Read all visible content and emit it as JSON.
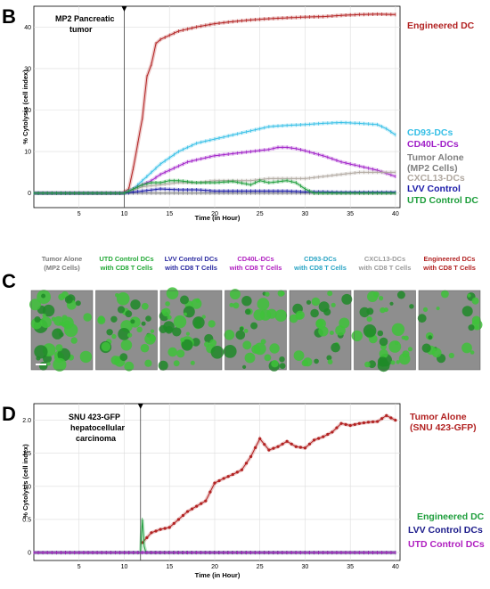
{
  "panels": {
    "B": "B",
    "C": "C",
    "D": "D"
  },
  "chart_data": [
    {
      "type": "line",
      "panel": "B",
      "annotation": "MP2 Pancreatic tumor",
      "xlabel": "Time (in Hour)",
      "ylabel": "% Cytolysis (cell index)",
      "xlim": [
        0,
        40.5
      ],
      "ylim": [
        -3.5,
        45
      ],
      "xticks": [
        5,
        10,
        15,
        20,
        25,
        30,
        35,
        40
      ],
      "yticks": [
        0,
        10,
        20,
        30,
        40
      ],
      "grid": true,
      "treatment_time": 10,
      "series": [
        {
          "name": "Engineered DC",
          "label": "Engineered DC",
          "color": "#b22222",
          "x": [
            0,
            9.8,
            10.5,
            11,
            11.5,
            12,
            12.5,
            13,
            13.5,
            14,
            15,
            16,
            17,
            18,
            20,
            22,
            24,
            26,
            28,
            30,
            32,
            34,
            36,
            38,
            40
          ],
          "y": [
            0,
            0,
            1,
            6,
            12,
            18,
            28,
            31,
            36,
            37,
            38,
            39,
            39.5,
            40,
            40.8,
            41.3,
            41.7,
            42,
            42.2,
            42.4,
            42.5,
            42.8,
            43,
            43.1,
            43
          ]
        },
        {
          "name": "CD93-DCs",
          "label": "CD93-DCs",
          "color": "#35bfe6",
          "x": [
            0,
            10,
            11,
            12,
            13,
            14,
            15,
            16,
            17,
            18,
            20,
            22,
            24,
            26,
            28,
            30,
            32,
            34,
            36,
            38,
            39,
            40
          ],
          "y": [
            0,
            0,
            1,
            3,
            5,
            7,
            8.5,
            10,
            11,
            12,
            13,
            14,
            15,
            16,
            16.3,
            16.5,
            16.8,
            17,
            16.8,
            16.5,
            15.5,
            14
          ]
        },
        {
          "name": "CD40L-DCs",
          "label": "CD40L-DCs",
          "color": "#a020c8",
          "x": [
            0,
            10,
            11,
            12,
            13,
            14,
            15,
            16,
            17,
            18,
            20,
            22,
            24,
            26,
            27,
            28,
            29,
            30,
            32,
            34,
            36,
            38,
            40
          ],
          "y": [
            0,
            0,
            1,
            2,
            3,
            4.5,
            5.5,
            6.5,
            7.5,
            8,
            9,
            9.5,
            10,
            10.5,
            11,
            11,
            10.7,
            10.2,
            9,
            7.5,
            6.5,
            5.5,
            4
          ]
        },
        {
          "name": "Tumor Alone (MP2 Cells)",
          "label": "Tumor Alone\n(MP2 Cells)",
          "color": "#808080",
          "x": [
            0,
            10,
            40
          ],
          "y": [
            0,
            0,
            0
          ]
        },
        {
          "name": "CXCL13-DCs",
          "label": "CXCL13-DCs",
          "color": "#b0a8a0",
          "x": [
            0,
            10,
            12,
            14,
            16,
            18,
            20,
            22,
            24,
            26,
            28,
            30,
            32,
            34,
            36,
            38,
            40
          ],
          "y": [
            0,
            0,
            1.5,
            2,
            2.5,
            2.5,
            3,
            3,
            3,
            3.5,
            3.5,
            3.5,
            4,
            4.5,
            5,
            5,
            5
          ]
        },
        {
          "name": "LVV Control",
          "label": "LVV Control",
          "color": "#1a1aa8",
          "x": [
            0,
            10,
            12,
            14,
            16,
            18,
            20,
            22,
            24,
            26,
            28,
            30,
            32,
            34,
            36,
            38,
            40
          ],
          "y": [
            0,
            0,
            0.5,
            1,
            0.8,
            0.8,
            0.5,
            0.5,
            0.5,
            0.5,
            0.5,
            0.3,
            0.3,
            0.2,
            0.2,
            0.2,
            0.2
          ]
        },
        {
          "name": "UTD Control DC",
          "label": "UTD Control DC",
          "color": "#1e9e3c",
          "x": [
            0,
            10,
            11,
            12,
            13,
            14,
            15,
            16,
            18,
            20,
            22,
            24,
            25,
            26,
            28,
            29,
            30,
            31,
            32,
            34,
            36,
            38,
            40
          ],
          "y": [
            0,
            0,
            1,
            2,
            2.5,
            2.5,
            3,
            3,
            2.5,
            2.5,
            2.8,
            2,
            3,
            2.5,
            3,
            2.5,
            1,
            0,
            0,
            0,
            0,
            0,
            0
          ]
        }
      ]
    },
    {
      "type": "line",
      "panel": "D",
      "annotation": "SNU 423-GFP hepatocellular carcinoma",
      "xlabel": "Time (in Hour)",
      "ylabel": "% Cytolysis (cell index)",
      "xlim": [
        0,
        40.5
      ],
      "ylim": [
        -0.12,
        2.25
      ],
      "xticks": [
        5,
        10,
        15,
        20,
        25,
        30,
        35,
        40
      ],
      "yticks": [
        0,
        0.5,
        1.0,
        1.5,
        2.0
      ],
      "grid": true,
      "treatment_time": 11.8,
      "series": [
        {
          "name": "Tumor Alone (SNU 423-GFP)",
          "label": "Tumor Alone\n(SNU 423-GFP)",
          "color": "#b22222",
          "x": [
            12,
            13,
            14,
            15,
            16,
            17,
            18,
            19,
            20,
            21,
            22,
            23,
            24,
            25,
            26,
            27,
            28,
            29,
            30,
            31,
            32,
            33,
            34,
            35,
            36,
            37,
            38,
            39,
            40
          ],
          "y": [
            0.15,
            0.3,
            0.35,
            0.38,
            0.5,
            0.62,
            0.7,
            0.78,
            1.05,
            1.12,
            1.18,
            1.25,
            1.45,
            1.72,
            1.55,
            1.6,
            1.68,
            1.6,
            1.58,
            1.7,
            1.75,
            1.82,
            1.95,
            1.92,
            1.95,
            1.97,
            1.98,
            2.07,
            2.0
          ]
        },
        {
          "name": "Engineered DC",
          "label": "Engineered DC",
          "color": "#1e9e3c",
          "x": [
            0,
            11.8,
            12,
            12.2,
            12.4,
            40
          ],
          "y": [
            0,
            0,
            0.5,
            0.1,
            0,
            0
          ]
        },
        {
          "name": "LVV Control DCs",
          "label": "LVV Control DCs",
          "color": "#1a1a8a",
          "x": [
            0,
            40
          ],
          "y": [
            0,
            0
          ]
        },
        {
          "name": "UTD Control DCs",
          "label": "UTD Control DCs",
          "color": "#b020c0",
          "x": [
            0,
            40
          ],
          "y": [
            0,
            0
          ]
        }
      ]
    }
  ],
  "panel_c": {
    "items": [
      {
        "label": "Tumor Alone\n(MP2 Cells)",
        "color": "#7a7a7a",
        "density": 0.55
      },
      {
        "label": "UTD Control DCs\nwith CD8 T Cells",
        "color": "#22a836",
        "density": 0.4
      },
      {
        "label": "LVV Control DCs\nwith CD8 T Cells",
        "color": "#2a2aa0",
        "density": 0.45
      },
      {
        "label": "CD40L-DCs\nwith CD8 T Cells",
        "color": "#b020c0",
        "density": 0.4
      },
      {
        "label": "CD93-DCs\nwith CD8 T Cells",
        "color": "#2aa4c4",
        "density": 0.3
      },
      {
        "label": "CXCL13-DCs\nwith CD8 T Cells",
        "color": "#9a9a9a",
        "density": 0.4
      },
      {
        "label": "Engineered  DCs\nwith CD8 T Cells",
        "color": "#b22222",
        "density": 0.2
      }
    ]
  }
}
